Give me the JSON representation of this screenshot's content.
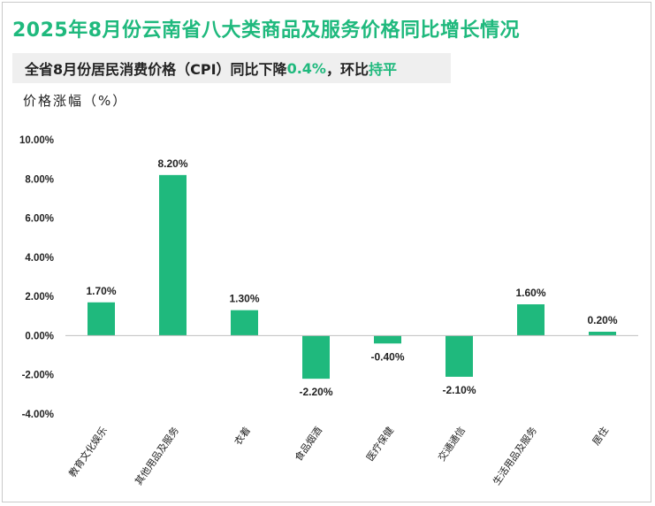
{
  "header": {
    "title": "2025年8月份云南省八大类商品及服务价格同比增长情况",
    "subtitle_prefix": "全省8月份居民消费价格（CPI）同比下降",
    "subtitle_value": "0.4%",
    "subtitle_mid": "，环比",
    "subtitle_end": "持平"
  },
  "chart_data": {
    "type": "bar",
    "ylabel": "价格涨幅（%）",
    "categories": [
      "教育文化娱乐",
      "其他用品及服务",
      "衣着",
      "食品烟酒",
      "医疗保健",
      "交通通信",
      "生活用品及服务",
      "居住"
    ],
    "values": [
      1.7,
      8.2,
      1.3,
      -2.2,
      -0.4,
      -2.1,
      1.6,
      0.2
    ],
    "value_labels": [
      "1.70%",
      "8.20%",
      "1.30%",
      "-2.20%",
      "-0.40%",
      "-2.10%",
      "1.60%",
      "0.20%"
    ],
    "yticks": [
      10,
      8,
      6,
      4,
      2,
      0,
      -2,
      -4
    ],
    "ytick_labels": [
      "10.00%",
      "8.00%",
      "6.00%",
      "4.00%",
      "2.00%",
      "0.00%",
      "-2.00%",
      "-4.00%"
    ],
    "ylim": [
      -4,
      10
    ],
    "bar_color": "#1fb97d",
    "grid": false,
    "legend": "none"
  }
}
